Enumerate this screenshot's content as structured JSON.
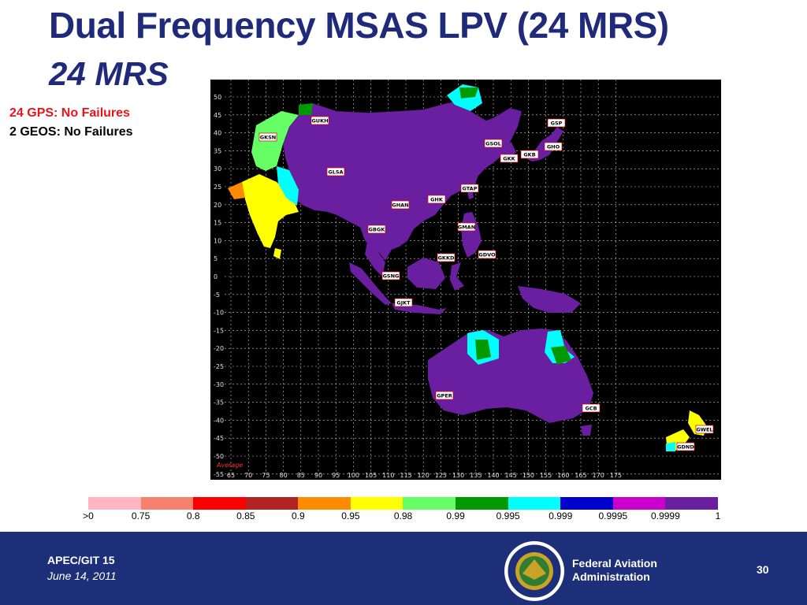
{
  "title": "Dual Frequency MSAS LPV (24 MRS)",
  "subtitle": "24 MRS",
  "status": {
    "gps": "24 GPS: No Failures",
    "geos": "2 GEOS: No Failures"
  },
  "map": {
    "lat_labels": [
      "50",
      "45",
      "40",
      "35",
      "30",
      "25",
      "20",
      "15",
      "10",
      "5",
      "0",
      "-5",
      "-10",
      "-15",
      "-20",
      "-25",
      "-30",
      "-35",
      "-40",
      "-45",
      "-50",
      "-55"
    ],
    "lon_labels": [
      "65",
      "70",
      "75",
      "80",
      "85",
      "90",
      "95",
      "100",
      "105",
      "110",
      "115",
      "120",
      "125",
      "130",
      "135",
      "140",
      "145",
      "150",
      "155",
      "160",
      "165",
      "170",
      "175"
    ],
    "note": "Average",
    "stations": [
      "GUKH",
      "GKSN",
      "GLSA",
      "GHAN",
      "GBGK",
      "GSNG",
      "GJKT",
      "GKKD",
      "GMAN",
      "GDVO",
      "GTAP",
      "GHK",
      "GSOL",
      "GKK",
      "GKB",
      "GSP",
      "GHO",
      "GPER",
      "GCB",
      "GWEL",
      "GDND"
    ]
  },
  "legend": {
    "colors": [
      "#ffb6c1",
      "#f7816f",
      "#ff0000",
      "#b22222",
      "#ff8c00",
      "#ffff00",
      "#66ff66",
      "#009900",
      "#00ffff",
      "#0000cc",
      "#cc00cc",
      "#6a1fa0"
    ],
    "labels": [
      ">0",
      "0.75",
      "0.8",
      "0.85",
      "0.9",
      "0.95",
      "0.98",
      "0.99",
      "0.995",
      "0.999",
      "0.9995",
      "0.9999",
      "1"
    ]
  },
  "footer": {
    "org": "APEC/GIT 15",
    "date": "June 14, 2011",
    "faa_line1": "Federal Aviation",
    "faa_line2": "Administration",
    "page": "30"
  }
}
